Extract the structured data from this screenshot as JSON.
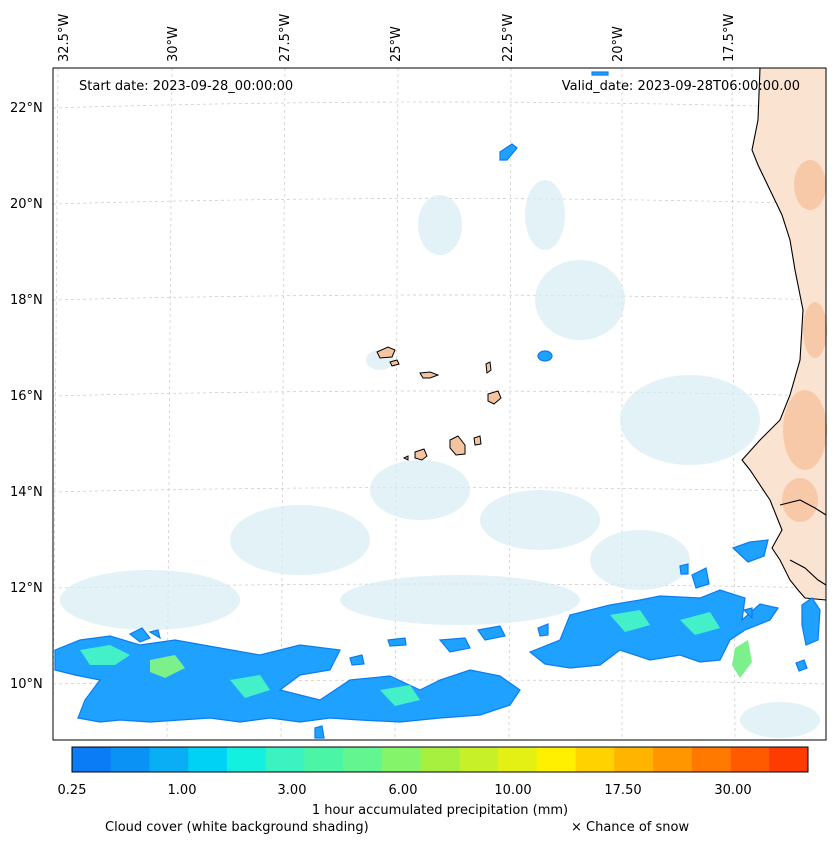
{
  "map": {
    "start_date": "Start date: 2023-09-28_00:00:00",
    "valid_date": "Valid_date: 2023-09-28T06:00:00.00",
    "lon_labels": [
      "32.5°W",
      "30°W",
      "27.5°W",
      "25°W",
      "22.5°W",
      "20°W",
      "17.5°W"
    ],
    "lat_labels": [
      "22°N",
      "20°N",
      "18°N",
      "16°N",
      "14°N",
      "12°N",
      "10°N"
    ]
  },
  "colorbar": {
    "colors": [
      "#0a7cf5",
      "#0a92f5",
      "#0aaef5",
      "#00d2f5",
      "#14f0e0",
      "#3cf2c0",
      "#4af5a5",
      "#62f590",
      "#84f56a",
      "#a8f040",
      "#c8f028",
      "#e4f014",
      "#fff000",
      "#ffd200",
      "#ffb400",
      "#ff9600",
      "#ff7800",
      "#ff5a00",
      "#ff3c00"
    ],
    "ticks": [
      "0.25",
      "1.00",
      "3.00",
      "6.00",
      "10.00",
      "17.50",
      "30.00"
    ],
    "label": "1 hour accumulated precipitation (mm)"
  },
  "legend": {
    "cloud_cover": "Cloud cover (white background shading)",
    "snow": "× Chance of snow"
  }
}
